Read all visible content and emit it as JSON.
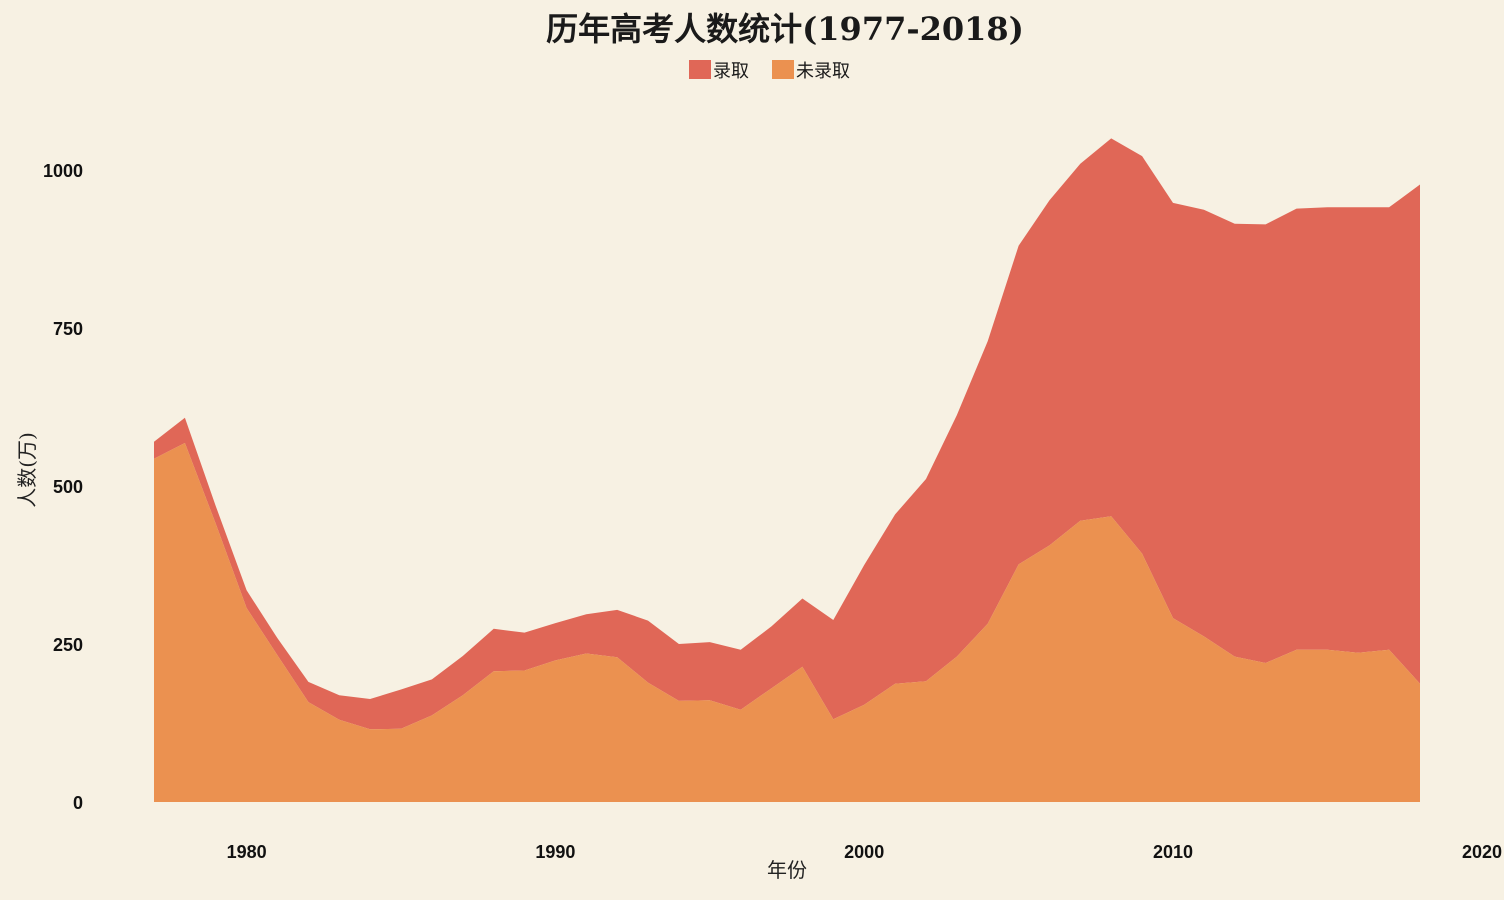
{
  "chart_data": {
    "type": "area",
    "title": "历年高考人数统计(1977-2018)",
    "xlabel": "年份",
    "ylabel": "人数(万)",
    "xlim": [
      1977,
      2020
    ],
    "ylim": [
      0,
      1100
    ],
    "xticks": [
      1980,
      1990,
      2000,
      2010,
      2020
    ],
    "yticks": [
      0,
      250,
      500,
      750,
      1000
    ],
    "grid": false,
    "legend_position": "top-center",
    "stacked": true,
    "x": [
      1977,
      1978,
      1979,
      1980,
      1981,
      1982,
      1983,
      1984,
      1985,
      1986,
      1987,
      1988,
      1989,
      1990,
      1991,
      1992,
      1993,
      1994,
      1995,
      1996,
      1997,
      1998,
      1999,
      2000,
      2001,
      2002,
      2003,
      2004,
      2005,
      2006,
      2007,
      2008,
      2009,
      2010,
      2011,
      2012,
      2013,
      2014,
      2015,
      2016,
      2017,
      2018
    ],
    "series": [
      {
        "name": "未录取",
        "color": "#eb9150",
        "values": [
          543,
          568,
          440,
          307,
          232,
          158,
          130,
          115,
          116,
          137,
          169,
          207,
          208,
          224,
          235,
          229,
          189,
          160,
          161,
          146,
          180,
          214,
          131,
          154,
          187,
          191,
          230,
          282,
          376,
          406,
          445,
          452,
          393,
          291,
          262,
          230,
          220,
          241,
          241,
          236,
          241,
          187
        ]
      },
      {
        "name": "录取",
        "color": "#e06757",
        "values": [
          27,
          40,
          28,
          28,
          27,
          32,
          39,
          48,
          62,
          57,
          62,
          67,
          60,
          59,
          62,
          75,
          98,
          90,
          92,
          95,
          98,
          108,
          157,
          221,
          268,
          320,
          382,
          447,
          504,
          546,
          565,
          598,
          629,
          657,
          675,
          685,
          694,
          698,
          700,
          705,
          700,
          790
        ]
      }
    ]
  }
}
